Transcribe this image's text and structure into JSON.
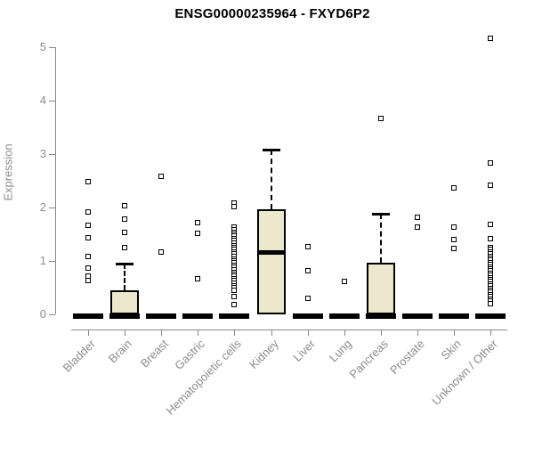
{
  "chart_data": {
    "type": "boxplot",
    "title": "ENSG00000235964 - FXYD6P2",
    "ylabel": "Expression",
    "xlabel": "",
    "ylim": [
      0,
      5
    ],
    "yticks": [
      0,
      1,
      2,
      3,
      4,
      5
    ],
    "grid": false,
    "legend": "none",
    "box_fill": "#ece7cd",
    "box_border": "#000000",
    "median_color": "#000000",
    "axis_color": "#888888",
    "tick_label_color": "#8c8c8c",
    "title_color": "#000000",
    "categories": [
      "Bladder",
      "Brain",
      "Breast",
      "Gastric",
      "Hematopoietic cells",
      "Kidney",
      "Liver",
      "Lung",
      "Pancreas",
      "Prostate",
      "Skin",
      "Unknown / Other"
    ],
    "groups": [
      {
        "label": "Bladder",
        "q1": 0,
        "median": 0,
        "q3": 0,
        "whisker_low": 0,
        "whisker_high": 0,
        "outliers": [
          2.48,
          1.92,
          1.66,
          1.44,
          1.09,
          0.87,
          0.72,
          0.64
        ]
      },
      {
        "label": "Brain",
        "q1": 0,
        "median": 0,
        "q3": 0.45,
        "whisker_low": 0,
        "whisker_high": 0.95,
        "outliers": [
          2.04,
          1.79,
          1.54,
          1.25
        ]
      },
      {
        "label": "Breast",
        "q1": 0,
        "median": 0,
        "q3": 0,
        "whisker_low": 0,
        "whisker_high": 0,
        "outliers": [
          2.59,
          1.17
        ]
      },
      {
        "label": "Gastric",
        "q1": 0,
        "median": 0,
        "q3": 0,
        "whisker_low": 0,
        "whisker_high": 0,
        "outliers": [
          1.71,
          1.51,
          0.67
        ]
      },
      {
        "label": "Hematopoietic cells",
        "q1": 0,
        "median": 0,
        "q3": 0,
        "whisker_low": 0,
        "whisker_high": 0,
        "outliers": [
          2.09,
          2.02,
          1.63,
          1.58,
          1.54,
          1.5,
          1.46,
          1.42,
          1.38,
          1.33,
          1.29,
          1.25,
          1.21,
          1.17,
          1.13,
          1.08,
          1.04,
          1.0,
          0.96,
          0.92,
          0.88,
          0.83,
          0.79,
          0.75,
          0.71,
          0.67,
          0.63,
          0.58,
          0.54,
          0.5,
          0.45,
          0.33,
          0.18
        ]
      },
      {
        "label": "Kidney",
        "q1": 0,
        "median": 1.17,
        "q3": 1.96,
        "whisker_low": 0,
        "whisker_high": 3.08,
        "outliers": []
      },
      {
        "label": "Liver",
        "q1": 0,
        "median": 0,
        "q3": 0,
        "whisker_low": 0,
        "whisker_high": 0,
        "outliers": [
          1.27,
          0.82,
          0.3
        ]
      },
      {
        "label": "Lung",
        "q1": 0,
        "median": 0,
        "q3": 0,
        "whisker_low": 0,
        "whisker_high": 0,
        "outliers": [
          0.62
        ]
      },
      {
        "label": "Pancreas",
        "q1": 0,
        "median": 0,
        "q3": 0.97,
        "whisker_low": 0,
        "whisker_high": 1.88,
        "outliers": [
          3.66
        ]
      },
      {
        "label": "Prostate",
        "q1": 0,
        "median": 0,
        "q3": 0,
        "whisker_low": 0,
        "whisker_high": 0,
        "outliers": [
          1.81,
          1.64
        ]
      },
      {
        "label": "Skin",
        "q1": 0,
        "median": 0,
        "q3": 0,
        "whisker_low": 0,
        "whisker_high": 0,
        "outliers": [
          2.37,
          1.64,
          1.4,
          1.24
        ]
      },
      {
        "label": "Unknown / Other",
        "q1": 0,
        "median": 0,
        "q3": 0,
        "whisker_low": 0,
        "whisker_high": 0,
        "outliers": [
          5.17,
          2.84,
          2.42,
          1.69,
          1.42,
          1.25,
          1.21,
          1.17,
          1.13,
          1.09,
          1.05,
          1.01,
          0.97,
          0.93,
          0.89,
          0.85,
          0.81,
          0.77,
          0.73,
          0.69,
          0.65,
          0.61,
          0.57,
          0.53,
          0.49,
          0.45,
          0.41,
          0.37,
          0.33,
          0.29,
          0.25,
          0.2
        ]
      }
    ]
  }
}
